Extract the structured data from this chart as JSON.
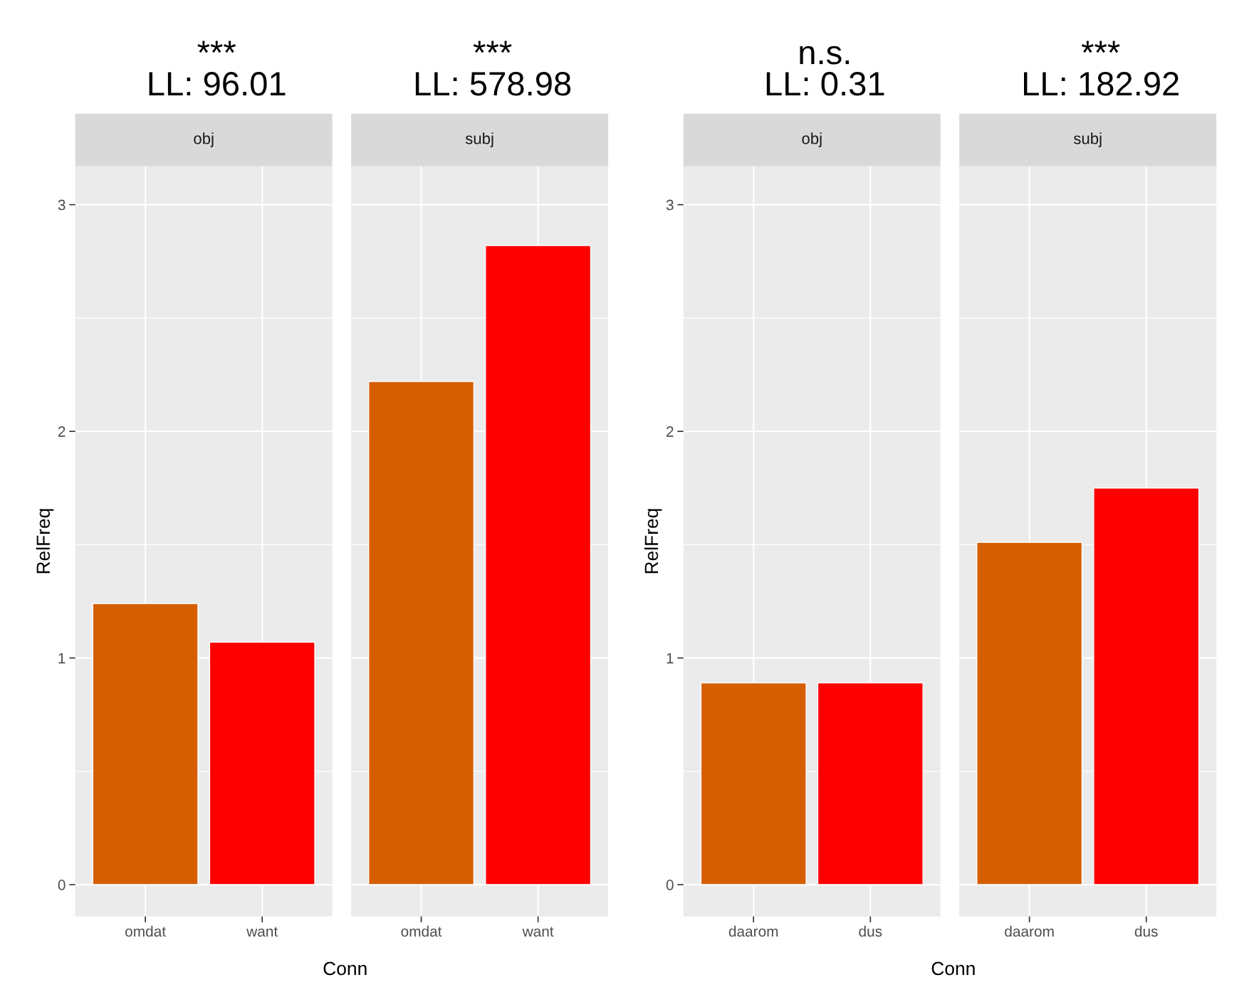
{
  "chart_data": [
    {
      "type": "bar",
      "title": "***\nLL: 96.01",
      "subtitle": "obj",
      "xlabel": "Conn",
      "ylabel": "RelFreq",
      "categories": [
        "omdat",
        "want"
      ],
      "values": [
        1.24,
        1.07
      ],
      "colors": [
        "#d55e00",
        "#ff0000"
      ],
      "ylim": [
        -0.14,
        3.17
      ],
      "yticks": [
        0,
        1,
        2,
        3
      ],
      "grid": true
    },
    {
      "type": "bar",
      "title": "***\nLL: 578.98",
      "subtitle": "subj",
      "categories": [
        "omdat",
        "want"
      ],
      "values": [
        2.22,
        2.82
      ],
      "colors": [
        "#d55e00",
        "#ff0000"
      ],
      "ylim": [
        -0.14,
        3.17
      ],
      "yticks": [
        0,
        1,
        2,
        3
      ],
      "grid": true,
      "tick_labels": "x"
    },
    {
      "type": "bar",
      "title": "n.s.\nLL: 0.31",
      "subtitle": "obj",
      "xlabel": "Conn",
      "ylabel": "RelFreq",
      "categories": [
        "daarom",
        "dus"
      ],
      "values": [
        0.89,
        0.89
      ],
      "colors": [
        "#d55e00",
        "#ff0000"
      ],
      "ylim": [
        -0.14,
        3.17
      ],
      "yticks": [
        0,
        1,
        2,
        3
      ],
      "grid": true
    },
    {
      "type": "bar",
      "title": "***\nLL: 182.92",
      "subtitle": "subj",
      "categories": [
        "daarom",
        "dus"
      ],
      "values": [
        1.51,
        1.75
      ],
      "colors": [
        "#d55e00",
        "#ff0000"
      ],
      "ylim": [
        -0.14,
        3.17
      ],
      "yticks": [
        0,
        1,
        2,
        3
      ],
      "grid": true,
      "tick_labels": "x"
    }
  ]
}
